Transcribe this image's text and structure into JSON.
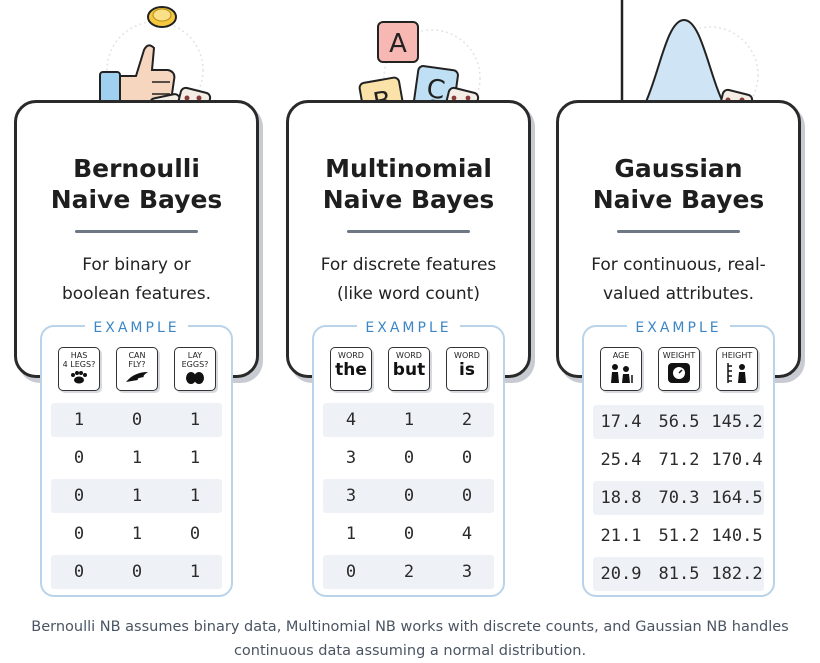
{
  "cards": [
    {
      "title_line1": "Bernoulli",
      "title_line2": "Naive Bayes",
      "desc_line1": "For binary or",
      "desc_line2": "boolean features.",
      "example_label": "EXAMPLE",
      "headers": [
        {
          "line1": "HAS",
          "line2": "4 LEGS?",
          "icon": "paw-icon"
        },
        {
          "line1": "CAN",
          "line2": "FLY?",
          "icon": "wing-icon"
        },
        {
          "line1": "LAY",
          "line2": "EGGS?",
          "icon": "eggs-icon"
        }
      ],
      "rows": [
        [
          "1",
          "0",
          "1"
        ],
        [
          "0",
          "1",
          "1"
        ],
        [
          "0",
          "1",
          "1"
        ],
        [
          "0",
          "1",
          "0"
        ],
        [
          "0",
          "0",
          "1"
        ]
      ],
      "illustration": "thumbs-up-coin-flip-with-dice"
    },
    {
      "title_line1": "Multinomial",
      "title_line2": "Naive Bayes",
      "desc_line1": "For discrete features",
      "desc_line2": "(like word count)",
      "example_label": "EXAMPLE",
      "headers": [
        {
          "line1": "WORD",
          "word": "the"
        },
        {
          "line1": "WORD",
          "word": "but"
        },
        {
          "line1": "WORD",
          "word": "is"
        }
      ],
      "rows": [
        [
          "4",
          "1",
          "2"
        ],
        [
          "3",
          "0",
          "0"
        ],
        [
          "3",
          "0",
          "0"
        ],
        [
          "1",
          "0",
          "4"
        ],
        [
          "0",
          "2",
          "3"
        ]
      ],
      "illustration": "abc-blocks-with-dice"
    },
    {
      "title_line1": "Gaussian",
      "title_line2": "Naive Bayes",
      "desc_line1": "For continuous, real-",
      "desc_line2": "valued attributes.",
      "example_label": "EXAMPLE",
      "headers": [
        {
          "line1": "AGE",
          "icon": "people-age-icon"
        },
        {
          "line1": "WEIGHT",
          "icon": "scale-icon"
        },
        {
          "line1": "HEIGHT",
          "icon": "height-icon"
        }
      ],
      "rows": [
        [
          "17.4",
          "56.5",
          "145.2"
        ],
        [
          "25.4",
          "71.2",
          "170.4"
        ],
        [
          "18.8",
          "70.3",
          "164.5"
        ],
        [
          "21.1",
          "51.2",
          "140.5"
        ],
        [
          "20.9",
          "81.5",
          "182.2"
        ]
      ],
      "illustration": "bell-curve-with-dice"
    }
  ],
  "blocks": [
    "A",
    "B",
    "C"
  ],
  "caption_line1": "Bernoulli NB assumes binary data, Multinomial NB works with discrete counts, and Gaussian NB handles",
  "caption_line2": "continuous data assuming a normal distribution.",
  "colors": {
    "accent_blue": "#3d86c6",
    "bell_fill": "#cfe4f5",
    "coin": "#f5c840",
    "thumb": "#9fd0f0",
    "block_a": "#f7b8b4",
    "block_b": "#fbe2a8",
    "block_c": "#bfe0f4",
    "die": "#f3ede6"
  }
}
